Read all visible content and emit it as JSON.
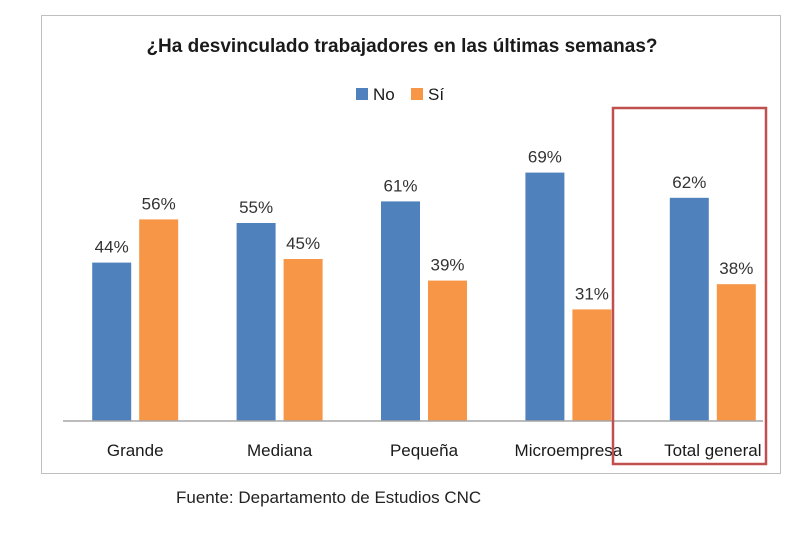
{
  "chart_data": {
    "type": "bar",
    "title": "¿Ha desvinculado trabajadores en las últimas semanas?",
    "categories": [
      "Grande",
      "Mediana",
      "Pequeña",
      "Microempresa",
      "Total general"
    ],
    "series": [
      {
        "name": "No",
        "values": [
          44,
          55,
          61,
          69,
          62
        ],
        "color": "#4f81bd"
      },
      {
        "name": "Sí",
        "values": [
          56,
          45,
          39,
          31,
          38
        ],
        "color": "#f79646"
      }
    ],
    "value_suffix": "%",
    "ylim": [
      0,
      100
    ],
    "grid": false,
    "legend_position": "top-center",
    "highlighted_category": "Total general",
    "highlight_color": "#c0504d"
  },
  "source": "Fuente: Departamento de Estudios CNC"
}
